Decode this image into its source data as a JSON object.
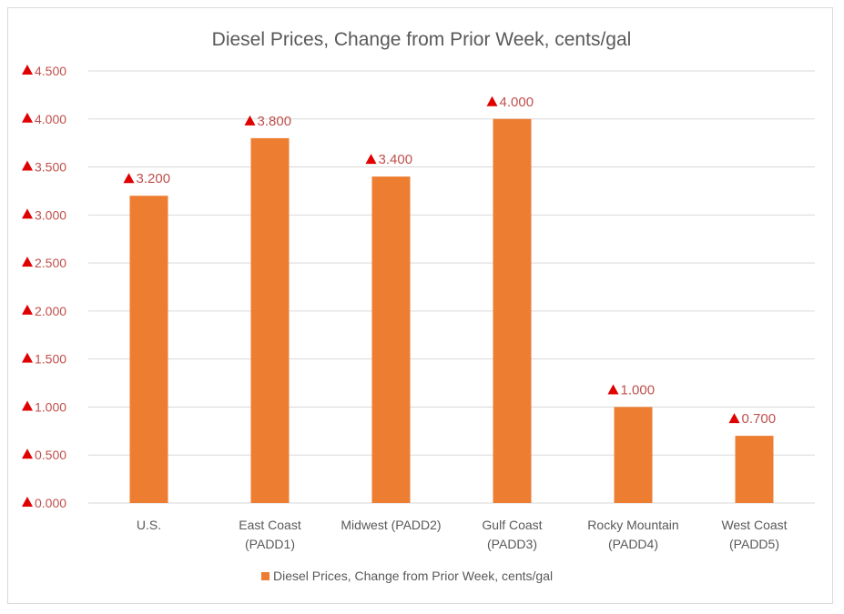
{
  "chart_data": {
    "type": "bar",
    "title": "Diesel Prices, Change from Prior Week, cents/gal",
    "categories": [
      [
        "U.S."
      ],
      [
        "East Coast",
        "(PADD1)"
      ],
      [
        "Midwest (PADD2)"
      ],
      [
        "Gulf Coast",
        "(PADD3)"
      ],
      [
        "Rocky Mountain",
        "(PADD4)"
      ],
      [
        "West Coast",
        "(PADD5)"
      ]
    ],
    "values": [
      3.2,
      3.8,
      3.4,
      4.0,
      1.0,
      0.7
    ],
    "data_labels": [
      "3.200",
      "3.800",
      "3.400",
      "4.000",
      "1.000",
      "0.700"
    ],
    "ylim": [
      0,
      4.5
    ],
    "yticks": [
      0,
      0.5,
      1,
      1.5,
      2,
      2.5,
      3,
      3.5,
      4,
      4.5
    ],
    "ytick_labels": [
      "0.000",
      "0.500",
      "1.000",
      "1.500",
      "2.000",
      "2.500",
      "3.000",
      "3.500",
      "4.000",
      "4.500"
    ],
    "label_marker": "▲",
    "legend": {
      "label": "Diesel Prices, Change from Prior Week, cents/gal",
      "position": "bottom"
    },
    "grid": true,
    "xlabel": "",
    "ylabel": "",
    "colors": {
      "bar": "#ed7d31",
      "grid": "#d9d9d9",
      "marker": "#e00000"
    }
  }
}
